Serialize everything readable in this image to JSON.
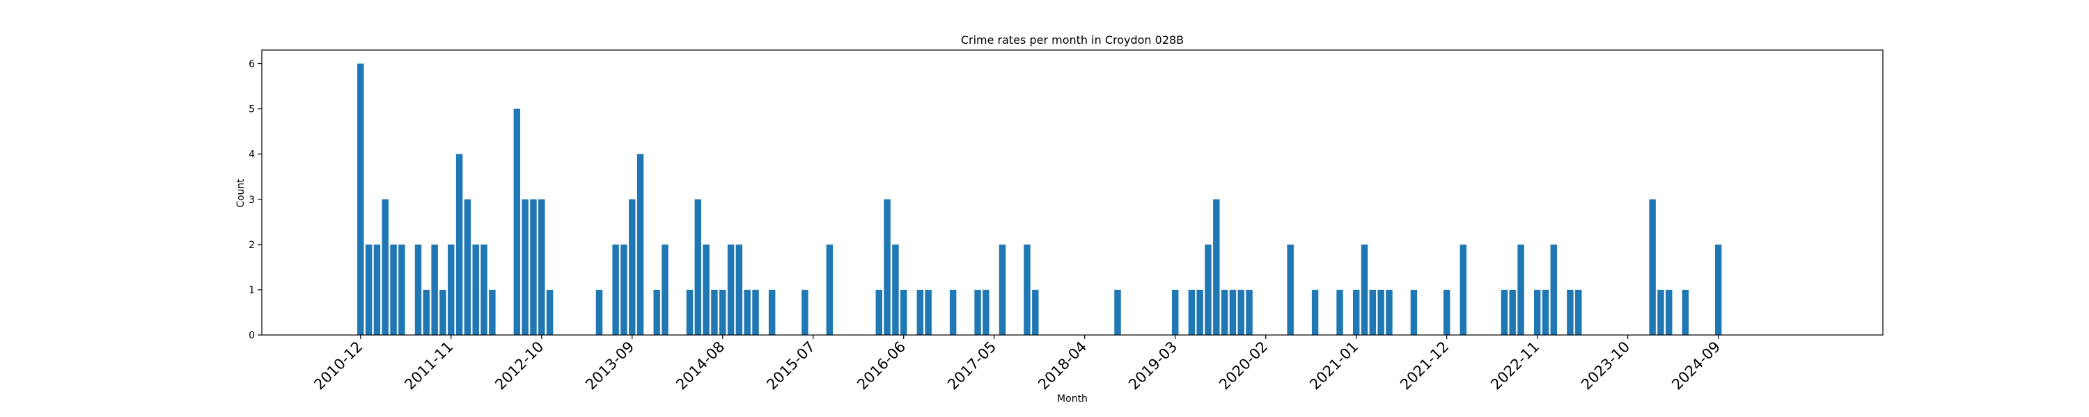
{
  "chart_data": {
    "type": "bar",
    "title": "Crime rates per month in Croydon 028B",
    "xlabel": "Month",
    "ylabel": "Count",
    "ylim": [
      0,
      6.3
    ],
    "yticks": [
      0,
      1,
      2,
      3,
      4,
      5,
      6
    ],
    "xlim": [
      "2009-12",
      "2026-05"
    ],
    "xtick_labels": [
      "2010-12",
      "2011-11",
      "2012-10",
      "2013-09",
      "2014-08",
      "2015-07",
      "2016-06",
      "2017-05",
      "2018-04",
      "2019-03",
      "2020-02",
      "2021-01",
      "2021-12",
      "2022-11",
      "2023-10",
      "2024-09"
    ],
    "grid": false,
    "legend": "none",
    "bar_color": "#1f77b4",
    "categories": [
      "2010-12",
      "2011-01",
      "2011-02",
      "2011-03",
      "2011-04",
      "2011-05",
      "2011-07",
      "2011-08",
      "2011-09",
      "2011-10",
      "2011-11",
      "2011-12",
      "2012-01",
      "2012-02",
      "2012-03",
      "2012-04",
      "2012-07",
      "2012-08",
      "2012-09",
      "2012-10",
      "2012-11",
      "2013-05",
      "2013-07",
      "2013-08",
      "2013-09",
      "2013-10",
      "2013-12",
      "2014-01",
      "2014-04",
      "2014-05",
      "2014-06",
      "2014-07",
      "2014-08",
      "2014-09",
      "2014-10",
      "2014-11",
      "2014-12",
      "2015-02",
      "2015-06",
      "2015-09",
      "2016-03",
      "2016-04",
      "2016-05",
      "2016-06",
      "2016-08",
      "2016-09",
      "2016-12",
      "2017-03",
      "2017-04",
      "2017-06",
      "2017-09",
      "2017-10",
      "2018-08",
      "2019-03",
      "2019-05",
      "2019-06",
      "2019-07",
      "2019-08",
      "2019-09",
      "2019-10",
      "2019-11",
      "2019-12",
      "2020-05",
      "2020-08",
      "2020-11",
      "2021-01",
      "2021-02",
      "2021-03",
      "2021-04",
      "2021-05",
      "2021-08",
      "2021-12",
      "2022-02",
      "2022-07",
      "2022-08",
      "2022-09",
      "2022-11",
      "2022-12",
      "2023-01",
      "2023-03",
      "2023-04",
      "2024-01",
      "2024-02",
      "2024-03",
      "2024-05",
      "2024-09"
    ],
    "values": [
      6,
      2,
      2,
      3,
      2,
      2,
      2,
      1,
      2,
      1,
      2,
      4,
      3,
      2,
      2,
      1,
      5,
      3,
      3,
      3,
      1,
      1,
      2,
      2,
      3,
      4,
      1,
      2,
      1,
      3,
      2,
      1,
      1,
      2,
      2,
      1,
      1,
      1,
      1,
      2,
      1,
      3,
      2,
      1,
      1,
      1,
      1,
      1,
      1,
      2,
      2,
      1,
      1,
      1,
      1,
      1,
      2,
      3,
      1,
      1,
      1,
      1,
      2,
      1,
      1,
      1,
      2,
      1,
      1,
      1,
      1,
      1,
      2,
      1,
      1,
      2,
      1,
      1,
      2,
      1,
      1,
      3,
      1,
      1,
      1,
      2
    ]
  }
}
